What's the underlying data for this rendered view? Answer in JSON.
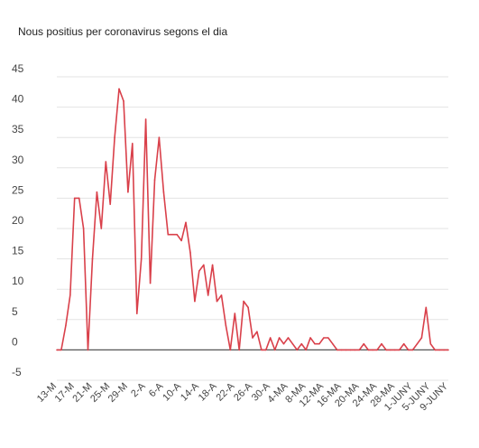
{
  "chart_data": {
    "type": "line",
    "title": "Nous positius per coronavirus segons el dia",
    "xlabel": "",
    "ylabel": "",
    "ylim": [
      -5,
      45
    ],
    "yticks": [
      "45",
      "40",
      "35",
      "30",
      "25",
      "20",
      "15",
      "10",
      "5",
      "0",
      "-5"
    ],
    "grid": true,
    "legend": "none",
    "line_color": "#d9404a",
    "x_tick_labels": [
      "13-M",
      "17-M",
      "21-M",
      "25-M",
      "29-M",
      "2-A",
      "6-A",
      "10-A",
      "14-A",
      "18-A",
      "22-A",
      "26-A",
      "30-A",
      "4-MA",
      "8-MA",
      "12-MA",
      "16-MA",
      "20-MA",
      "24-MA",
      "28-MA",
      "1-JUNY",
      "5-JUNY",
      "9-JUNY"
    ],
    "series": [
      {
        "values": [
          0,
          0,
          4,
          9,
          25,
          25,
          20,
          0,
          15,
          26,
          20,
          31,
          24,
          35,
          43,
          41,
          26,
          34,
          6,
          15,
          38,
          11,
          28,
          35,
          26,
          19,
          19,
          19,
          18,
          21,
          16,
          8,
          13,
          14,
          9,
          14,
          8,
          9,
          4,
          0,
          6,
          0,
          8,
          7,
          2,
          3,
          0,
          0,
          2,
          0,
          2,
          1,
          2,
          1,
          0,
          1,
          0,
          2,
          1,
          1,
          2,
          2,
          1,
          0,
          0,
          0,
          0,
          0,
          0,
          1,
          0,
          0,
          0,
          1,
          0,
          0,
          0,
          0,
          1,
          0,
          0,
          1,
          2,
          7,
          1,
          0,
          0,
          0,
          0
        ]
      }
    ]
  }
}
